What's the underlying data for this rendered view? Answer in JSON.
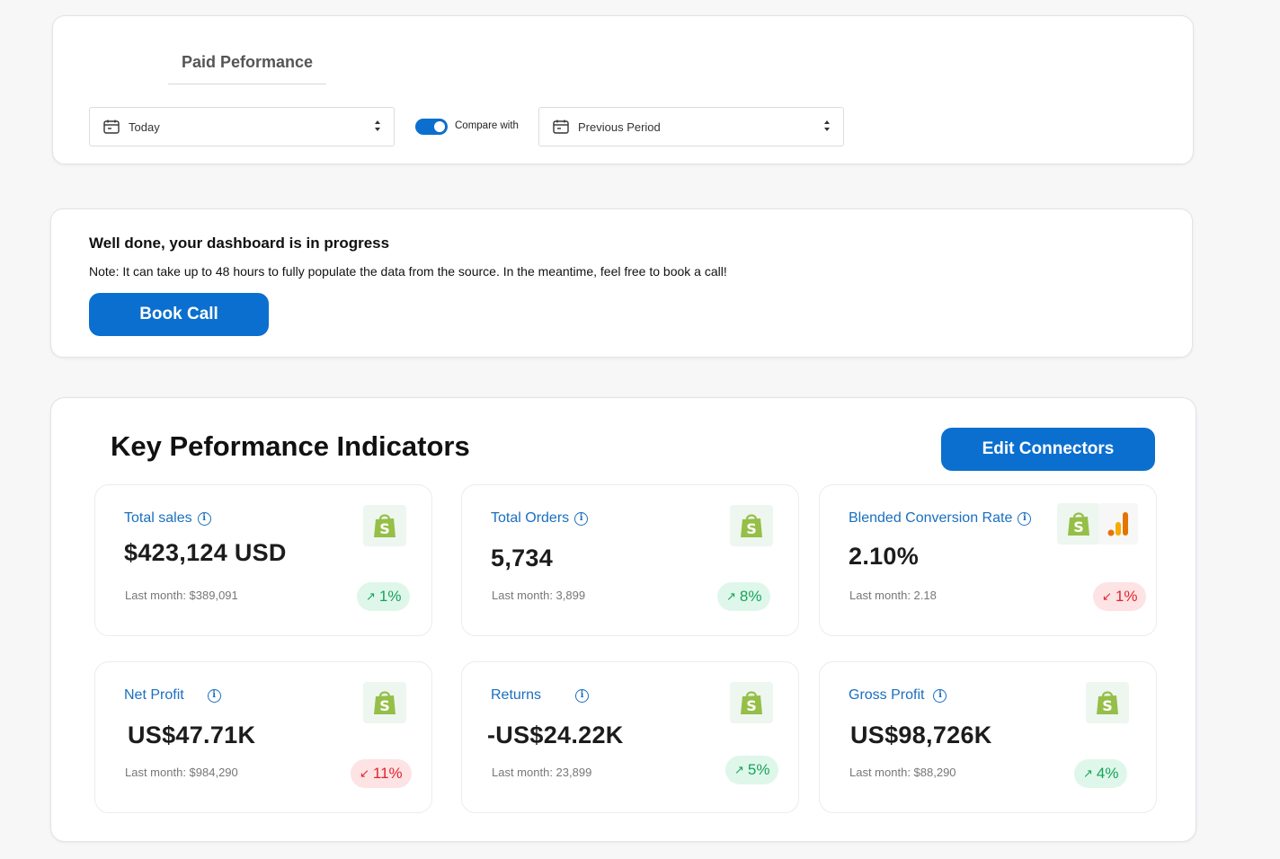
{
  "filters": {
    "tab_label": "Paid Peformance",
    "date_range": "Today",
    "compare_label": "Compare with",
    "compare_enabled": true,
    "compare_period": "Previous Period"
  },
  "progress": {
    "title": "Well done, your dashboard is in progress",
    "note": "Note: It can take up to 48 hours to fully populate the data from the source. In the meantime, feel free to book a call!",
    "button": "Book Call"
  },
  "kpis": {
    "title": "Key Peformance Indicators",
    "edit_button": "Edit Connectors",
    "items": [
      {
        "label": "Total sales",
        "value": "$423,124 USD",
        "last": "Last month: $389,091",
        "change": "1%",
        "direction": "up",
        "sources": [
          "shopify-icon"
        ]
      },
      {
        "label": "Total Orders",
        "value": "5,734",
        "last": "Last month: 3,899",
        "change": "8%",
        "direction": "up",
        "sources": [
          "shopify-icon"
        ]
      },
      {
        "label": "Blended Conversion Rate",
        "value": "2.10%",
        "last": "Last month: 2.18",
        "change": "1%",
        "direction": "down",
        "sources": [
          "shopify-icon",
          "google-analytics-icon"
        ]
      },
      {
        "label": "Net Profit",
        "value": "US$47.71K",
        "last": "Last month: $984,290",
        "change": "11%",
        "direction": "down",
        "sources": [
          "shopify-icon"
        ]
      },
      {
        "label": "Returns",
        "value": "-US$24.22K",
        "last": "Last month: 23,899",
        "change": "5%",
        "direction": "up",
        "sources": [
          "shopify-icon"
        ]
      },
      {
        "label": "Gross Profit",
        "value": "US$98,726K",
        "last": "Last month: $88,290",
        "change": "4%",
        "direction": "up",
        "sources": [
          "shopify-icon"
        ]
      }
    ]
  },
  "colors": {
    "accent": "#0b6fcf",
    "positive": "#18a35b",
    "negative": "#e0262f",
    "label": "#1a6fbf"
  }
}
